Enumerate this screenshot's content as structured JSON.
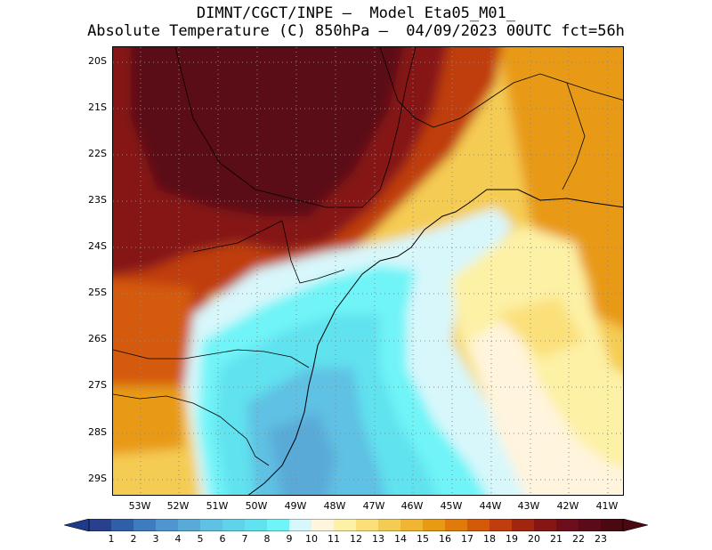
{
  "title": {
    "line1": "DIMNT/CGCT/INPE –  Model Eta05_M01_",
    "line2": "Absolute Temperature (C) 850hPa –  04/09/2023 00UTC fct=56h"
  },
  "map": {
    "lat_labels": [
      "20S",
      "21S",
      "22S",
      "23S",
      "24S",
      "25S",
      "26S",
      "27S",
      "28S",
      "29S"
    ],
    "lon_labels": [
      "53W",
      "52W",
      "51W",
      "50W",
      "49W",
      "48W",
      "47W",
      "46W",
      "45W",
      "44W",
      "43W",
      "42W",
      "41W"
    ]
  },
  "colorbar": {
    "labels": [
      "1",
      "2",
      "3",
      "4",
      "5",
      "6",
      "7",
      "8",
      "9",
      "10",
      "11",
      "12",
      "13",
      "14",
      "15",
      "16",
      "17",
      "18",
      "19",
      "20",
      "21",
      "22",
      "23"
    ],
    "colors": [
      "#27418f",
      "#2f5fa8",
      "#3f7cbf",
      "#4f95cf",
      "#5aaad8",
      "#5fc1e3",
      "#5fd3ea",
      "#60e2ef",
      "#6ff4f7",
      "#d8f7fb",
      "#fff4dd",
      "#fdf1a6",
      "#fbe07a",
      "#f5cc53",
      "#f0b531",
      "#e89a12",
      "#e07a0a",
      "#d45a0a",
      "#c03d0e",
      "#a1250f",
      "#861614",
      "#6e0d1c",
      "#5a0a18",
      "#4a0810"
    ],
    "left_arrow_color": "#1e3a8a",
    "right_arrow_color": "#4a0810"
  }
}
